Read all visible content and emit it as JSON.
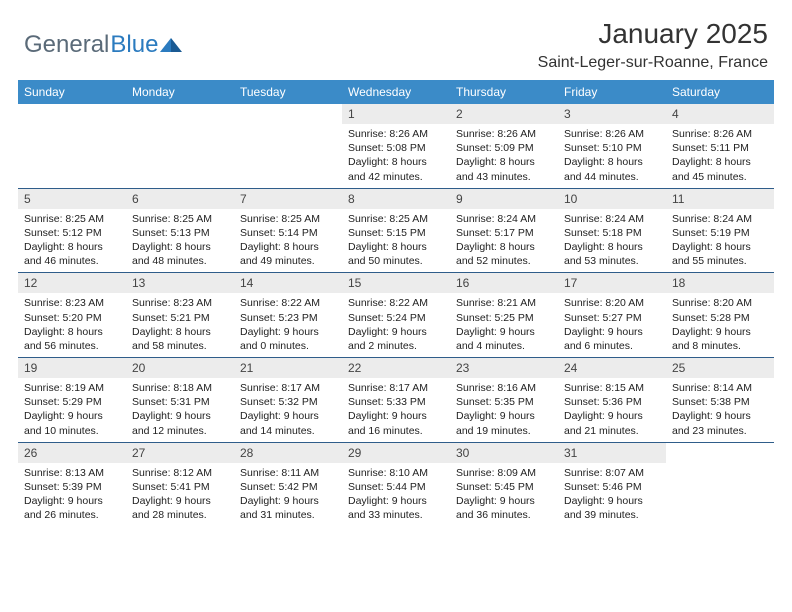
{
  "logo": {
    "text1": "General",
    "text2": "Blue"
  },
  "title": {
    "month": "January 2025",
    "location": "Saint-Leger-sur-Roanne, France"
  },
  "colors": {
    "header_bg": "#3b8bc8",
    "week_border": "#2f5d8a",
    "daynum_bg": "#ececec",
    "text": "#222222",
    "logo_gray": "#5a6a78",
    "logo_blue": "#2b7bbf"
  },
  "weekdays": [
    "Sunday",
    "Monday",
    "Tuesday",
    "Wednesday",
    "Thursday",
    "Friday",
    "Saturday"
  ],
  "weeks": [
    [
      {
        "n": "",
        "sunrise": "",
        "sunset": "",
        "d1": "",
        "d2": ""
      },
      {
        "n": "",
        "sunrise": "",
        "sunset": "",
        "d1": "",
        "d2": ""
      },
      {
        "n": "",
        "sunrise": "",
        "sunset": "",
        "d1": "",
        "d2": ""
      },
      {
        "n": "1",
        "sunrise": "Sunrise: 8:26 AM",
        "sunset": "Sunset: 5:08 PM",
        "d1": "Daylight: 8 hours",
        "d2": "and 42 minutes."
      },
      {
        "n": "2",
        "sunrise": "Sunrise: 8:26 AM",
        "sunset": "Sunset: 5:09 PM",
        "d1": "Daylight: 8 hours",
        "d2": "and 43 minutes."
      },
      {
        "n": "3",
        "sunrise": "Sunrise: 8:26 AM",
        "sunset": "Sunset: 5:10 PM",
        "d1": "Daylight: 8 hours",
        "d2": "and 44 minutes."
      },
      {
        "n": "4",
        "sunrise": "Sunrise: 8:26 AM",
        "sunset": "Sunset: 5:11 PM",
        "d1": "Daylight: 8 hours",
        "d2": "and 45 minutes."
      }
    ],
    [
      {
        "n": "5",
        "sunrise": "Sunrise: 8:25 AM",
        "sunset": "Sunset: 5:12 PM",
        "d1": "Daylight: 8 hours",
        "d2": "and 46 minutes."
      },
      {
        "n": "6",
        "sunrise": "Sunrise: 8:25 AM",
        "sunset": "Sunset: 5:13 PM",
        "d1": "Daylight: 8 hours",
        "d2": "and 48 minutes."
      },
      {
        "n": "7",
        "sunrise": "Sunrise: 8:25 AM",
        "sunset": "Sunset: 5:14 PM",
        "d1": "Daylight: 8 hours",
        "d2": "and 49 minutes."
      },
      {
        "n": "8",
        "sunrise": "Sunrise: 8:25 AM",
        "sunset": "Sunset: 5:15 PM",
        "d1": "Daylight: 8 hours",
        "d2": "and 50 minutes."
      },
      {
        "n": "9",
        "sunrise": "Sunrise: 8:24 AM",
        "sunset": "Sunset: 5:17 PM",
        "d1": "Daylight: 8 hours",
        "d2": "and 52 minutes."
      },
      {
        "n": "10",
        "sunrise": "Sunrise: 8:24 AM",
        "sunset": "Sunset: 5:18 PM",
        "d1": "Daylight: 8 hours",
        "d2": "and 53 minutes."
      },
      {
        "n": "11",
        "sunrise": "Sunrise: 8:24 AM",
        "sunset": "Sunset: 5:19 PM",
        "d1": "Daylight: 8 hours",
        "d2": "and 55 minutes."
      }
    ],
    [
      {
        "n": "12",
        "sunrise": "Sunrise: 8:23 AM",
        "sunset": "Sunset: 5:20 PM",
        "d1": "Daylight: 8 hours",
        "d2": "and 56 minutes."
      },
      {
        "n": "13",
        "sunrise": "Sunrise: 8:23 AM",
        "sunset": "Sunset: 5:21 PM",
        "d1": "Daylight: 8 hours",
        "d2": "and 58 minutes."
      },
      {
        "n": "14",
        "sunrise": "Sunrise: 8:22 AM",
        "sunset": "Sunset: 5:23 PM",
        "d1": "Daylight: 9 hours",
        "d2": "and 0 minutes."
      },
      {
        "n": "15",
        "sunrise": "Sunrise: 8:22 AM",
        "sunset": "Sunset: 5:24 PM",
        "d1": "Daylight: 9 hours",
        "d2": "and 2 minutes."
      },
      {
        "n": "16",
        "sunrise": "Sunrise: 8:21 AM",
        "sunset": "Sunset: 5:25 PM",
        "d1": "Daylight: 9 hours",
        "d2": "and 4 minutes."
      },
      {
        "n": "17",
        "sunrise": "Sunrise: 8:20 AM",
        "sunset": "Sunset: 5:27 PM",
        "d1": "Daylight: 9 hours",
        "d2": "and 6 minutes."
      },
      {
        "n": "18",
        "sunrise": "Sunrise: 8:20 AM",
        "sunset": "Sunset: 5:28 PM",
        "d1": "Daylight: 9 hours",
        "d2": "and 8 minutes."
      }
    ],
    [
      {
        "n": "19",
        "sunrise": "Sunrise: 8:19 AM",
        "sunset": "Sunset: 5:29 PM",
        "d1": "Daylight: 9 hours",
        "d2": "and 10 minutes."
      },
      {
        "n": "20",
        "sunrise": "Sunrise: 8:18 AM",
        "sunset": "Sunset: 5:31 PM",
        "d1": "Daylight: 9 hours",
        "d2": "and 12 minutes."
      },
      {
        "n": "21",
        "sunrise": "Sunrise: 8:17 AM",
        "sunset": "Sunset: 5:32 PM",
        "d1": "Daylight: 9 hours",
        "d2": "and 14 minutes."
      },
      {
        "n": "22",
        "sunrise": "Sunrise: 8:17 AM",
        "sunset": "Sunset: 5:33 PM",
        "d1": "Daylight: 9 hours",
        "d2": "and 16 minutes."
      },
      {
        "n": "23",
        "sunrise": "Sunrise: 8:16 AM",
        "sunset": "Sunset: 5:35 PM",
        "d1": "Daylight: 9 hours",
        "d2": "and 19 minutes."
      },
      {
        "n": "24",
        "sunrise": "Sunrise: 8:15 AM",
        "sunset": "Sunset: 5:36 PM",
        "d1": "Daylight: 9 hours",
        "d2": "and 21 minutes."
      },
      {
        "n": "25",
        "sunrise": "Sunrise: 8:14 AM",
        "sunset": "Sunset: 5:38 PM",
        "d1": "Daylight: 9 hours",
        "d2": "and 23 minutes."
      }
    ],
    [
      {
        "n": "26",
        "sunrise": "Sunrise: 8:13 AM",
        "sunset": "Sunset: 5:39 PM",
        "d1": "Daylight: 9 hours",
        "d2": "and 26 minutes."
      },
      {
        "n": "27",
        "sunrise": "Sunrise: 8:12 AM",
        "sunset": "Sunset: 5:41 PM",
        "d1": "Daylight: 9 hours",
        "d2": "and 28 minutes."
      },
      {
        "n": "28",
        "sunrise": "Sunrise: 8:11 AM",
        "sunset": "Sunset: 5:42 PM",
        "d1": "Daylight: 9 hours",
        "d2": "and 31 minutes."
      },
      {
        "n": "29",
        "sunrise": "Sunrise: 8:10 AM",
        "sunset": "Sunset: 5:44 PM",
        "d1": "Daylight: 9 hours",
        "d2": "and 33 minutes."
      },
      {
        "n": "30",
        "sunrise": "Sunrise: 8:09 AM",
        "sunset": "Sunset: 5:45 PM",
        "d1": "Daylight: 9 hours",
        "d2": "and 36 minutes."
      },
      {
        "n": "31",
        "sunrise": "Sunrise: 8:07 AM",
        "sunset": "Sunset: 5:46 PM",
        "d1": "Daylight: 9 hours",
        "d2": "and 39 minutes."
      },
      {
        "n": "",
        "sunrise": "",
        "sunset": "",
        "d1": "",
        "d2": ""
      }
    ]
  ]
}
